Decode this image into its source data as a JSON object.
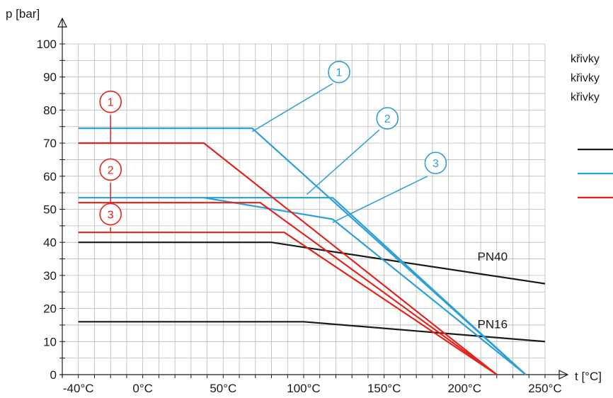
{
  "chart_data": {
    "type": "line",
    "xlabel": "t [°C]",
    "ylabel": "p [bar]",
    "xlim": [
      -50,
      250
    ],
    "ylim": [
      0,
      100
    ],
    "grid": true,
    "x_ticks": [
      {
        "value": -40,
        "label": "-40°C"
      },
      {
        "value": 0,
        "label": "0°C"
      },
      {
        "value": 50,
        "label": "50°C"
      },
      {
        "value": 100,
        "label": "100°C"
      },
      {
        "value": 150,
        "label": "150°C"
      },
      {
        "value": 200,
        "label": "200°C"
      },
      {
        "value": 250,
        "label": "250°C"
      }
    ],
    "y_ticks": [
      {
        "value": 0,
        "label": "0"
      },
      {
        "value": 10,
        "label": "10"
      },
      {
        "value": 20,
        "label": "20"
      },
      {
        "value": 30,
        "label": "30"
      },
      {
        "value": 40,
        "label": "40"
      },
      {
        "value": 50,
        "label": "50"
      },
      {
        "value": 60,
        "label": "60"
      },
      {
        "value": 70,
        "label": "70"
      },
      {
        "value": 80,
        "label": "80"
      },
      {
        "value": 90,
        "label": "90"
      },
      {
        "value": 100,
        "label": "100"
      }
    ],
    "series": [
      {
        "name": "PN40",
        "color": "#1a1a1a",
        "points": [
          [
            -40,
            40
          ],
          [
            80,
            40
          ],
          [
            100,
            38.5
          ],
          [
            250,
            27.5
          ]
        ]
      },
      {
        "name": "PN16",
        "color": "#1a1a1a",
        "points": [
          [
            -40,
            16
          ],
          [
            100,
            16
          ],
          [
            250,
            10
          ]
        ]
      },
      {
        "color": "#2a9fd8",
        "points": [
          [
            -40,
            74.5
          ],
          [
            68,
            74.5
          ],
          [
            238,
            0
          ]
        ]
      },
      {
        "color": "#2a9fd8",
        "points": [
          [
            -40,
            53.5
          ],
          [
            118,
            53.5
          ],
          [
            238,
            0
          ]
        ]
      },
      {
        "color": "#2a9fd8",
        "points": [
          [
            38,
            53.5
          ],
          [
            118,
            47
          ],
          [
            238,
            0
          ]
        ]
      },
      {
        "color": "#e32219",
        "points": [
          [
            -40,
            70
          ],
          [
            38,
            70
          ],
          [
            220,
            0
          ]
        ]
      },
      {
        "color": "#e32219",
        "points": [
          [
            -40,
            52
          ],
          [
            73,
            52
          ],
          [
            220,
            0
          ]
        ]
      },
      {
        "color": "#e32219",
        "points": [
          [
            -40,
            43
          ],
          [
            88,
            43
          ],
          [
            220,
            0
          ]
        ]
      }
    ],
    "series_labels": [
      {
        "text": "PN40",
        "x": 208,
        "y": 34.5
      },
      {
        "text": "PN16",
        "x": 208,
        "y": 14
      }
    ],
    "markers": [
      {
        "text": "1",
        "color": "#2a9fd8",
        "x": 122,
        "y": 91.5,
        "leader": [
          [
            68,
            73.5
          ],
          [
            118,
            88
          ]
        ]
      },
      {
        "text": "2",
        "color": "#2a9fd8",
        "x": 152,
        "y": 77.5,
        "leader": [
          [
            102,
            54.5
          ],
          [
            147,
            74
          ]
        ]
      },
      {
        "text": "3",
        "color": "#2a9fd8",
        "x": 182,
        "y": 64,
        "leader": [
          [
            118,
            46
          ],
          [
            177,
            60
          ]
        ]
      },
      {
        "text": "1",
        "color": "#e32219",
        "x": -20,
        "y": 82.5,
        "leader": [
          [
            -20,
            78.5
          ],
          [
            -20,
            70
          ]
        ]
      },
      {
        "text": "2",
        "color": "#e32219",
        "x": -20,
        "y": 62,
        "leader": [
          [
            -20,
            58
          ],
          [
            -20,
            52
          ]
        ]
      },
      {
        "text": "3",
        "color": "#e32219",
        "x": -20,
        "y": 48.5,
        "leader": [
          [
            -20,
            44.5
          ],
          [
            -20,
            43
          ]
        ]
      }
    ],
    "legend": {
      "placement": "top-right",
      "text_lines": [
        "křivky",
        "křivky",
        "křivky"
      ],
      "swatches": [
        "#1a1a1a",
        "#2a9fd8",
        "#e32219"
      ]
    }
  }
}
